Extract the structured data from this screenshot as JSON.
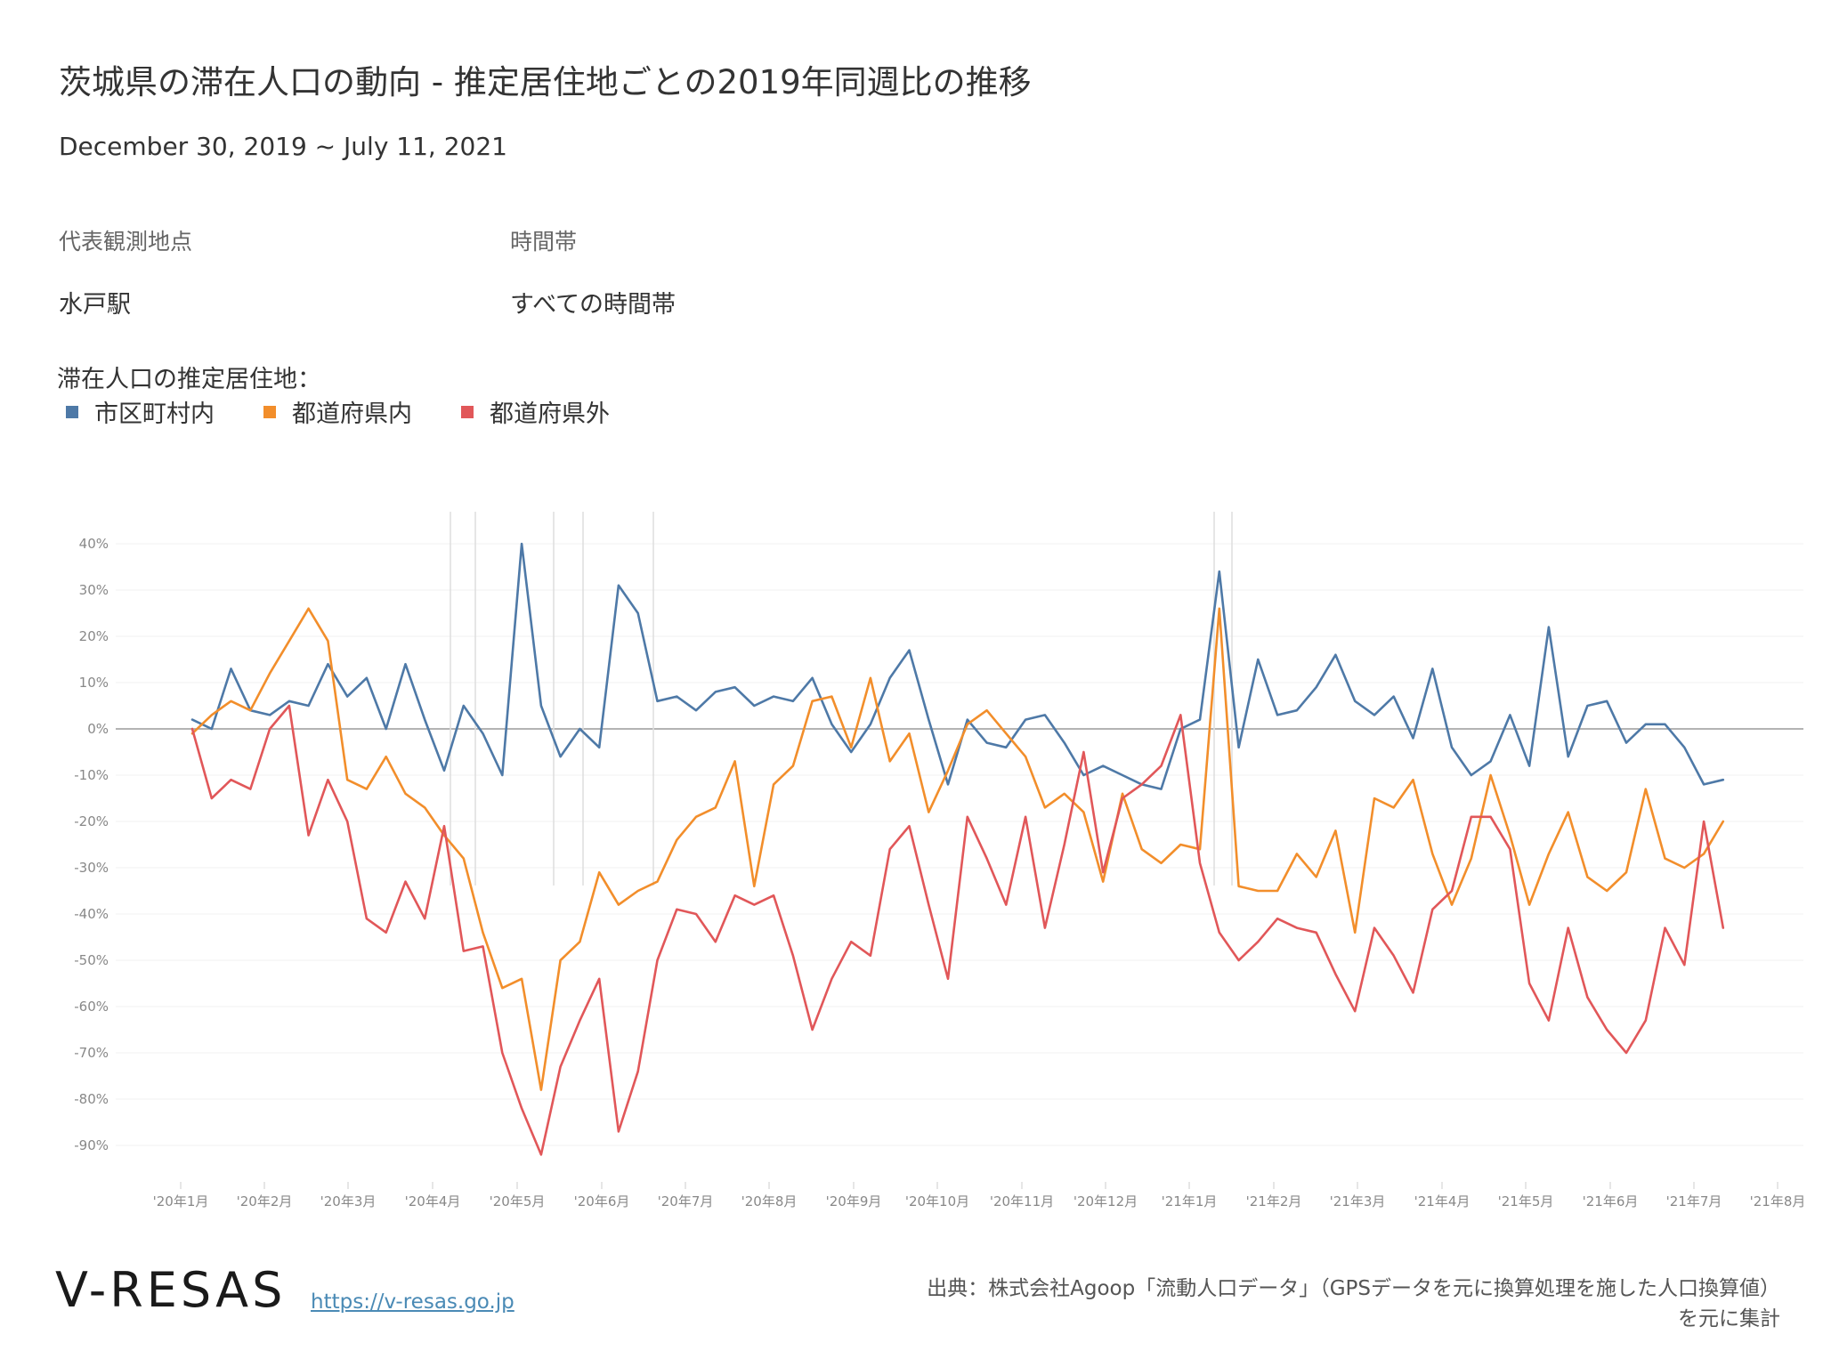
{
  "title": "茨城県の滞在人口の動向 - 推定居住地ごとの2019年同週比の推移",
  "subtitle": "December 30, 2019 ~ July 11, 2021",
  "filters": [
    {
      "label": "代表観測地点",
      "value": "水戸駅"
    },
    {
      "label": "時間帯",
      "value": "すべての時間帯"
    }
  ],
  "legend": {
    "title": "滞在人口の推定居住地：",
    "items": [
      {
        "label": "市区町村内",
        "color": "#4e79a7"
      },
      {
        "label": "都道府県内",
        "color": "#f28e2b"
      },
      {
        "label": "都道府県外",
        "color": "#e15759"
      }
    ]
  },
  "chart_data": {
    "type": "line",
    "x_start": "2020-01-06",
    "x_interval": "weekly",
    "ylim": [
      -95,
      45
    ],
    "yticks": [
      40,
      30,
      20,
      10,
      0,
      -10,
      -20,
      -30,
      -40,
      -50,
      -60,
      -70,
      -80,
      -90
    ],
    "ytick_labels": [
      "40%",
      "30%",
      "20%",
      "10%",
      "0%",
      "-10%",
      "-20%",
      "-30%",
      "-40%",
      "-50%",
      "-60%",
      "-70%",
      "-80%",
      "-90%"
    ],
    "xtick_labels": [
      "'20年1月",
      "'20年2月",
      "'20年3月",
      "'20年4月",
      "'20年5月",
      "'20年6月",
      "'20年7月",
      "'20年8月",
      "'20年9月",
      "'20年10月",
      "'20年11月",
      "'20年12月",
      "'21年1月",
      "'21年2月",
      "'21年3月",
      "'21年4月",
      "'21年5月",
      "'21年6月",
      "'21年7月",
      "'21年8月"
    ],
    "grid": true,
    "zero_line": true,
    "series": [
      {
        "name": "市区町村内",
        "color": "#4e79a7",
        "values": [
          2,
          0,
          13,
          4,
          3,
          6,
          5,
          14,
          7,
          11,
          0,
          14,
          2,
          -9,
          5,
          -1,
          -10,
          40,
          5,
          -6,
          0,
          -4,
          31,
          25,
          6,
          7,
          4,
          8,
          9,
          5,
          7,
          6,
          11,
          1,
          -5,
          1,
          11,
          17,
          2,
          -12,
          2,
          -3,
          -4,
          2,
          3,
          -3,
          -10,
          -8,
          -10,
          -12,
          -13,
          0,
          2,
          34,
          -4,
          15,
          3,
          4,
          9,
          16,
          6,
          3,
          7,
          -2,
          13,
          -4,
          -10,
          -7,
          3,
          -8,
          22,
          -6,
          5,
          6,
          -3,
          1,
          1,
          -4,
          -12,
          -11
        ]
      },
      {
        "name": "都道府県内",
        "color": "#f28e2b",
        "values": [
          -1,
          3,
          6,
          4,
          12,
          19,
          26,
          19,
          -11,
          -13,
          -6,
          -14,
          -17,
          -23,
          -28,
          -44,
          -56,
          -54,
          -78,
          -50,
          -46,
          -31,
          -38,
          -35,
          -33,
          -24,
          -19,
          -17,
          -7,
          -34,
          -12,
          -8,
          6,
          7,
          -4,
          11,
          -7,
          -1,
          -18,
          -9,
          1,
          4,
          -1,
          -6,
          -17,
          -14,
          -18,
          -33,
          -14,
          -26,
          -29,
          -25,
          -26,
          26,
          -34,
          -35,
          -35,
          -27,
          -32,
          -22,
          -44,
          -15,
          -17,
          -11,
          -27,
          -38,
          -28,
          -10,
          -23,
          -38,
          -27,
          -18,
          -32,
          -35,
          -31,
          -13,
          -28,
          -30,
          -27,
          -20
        ]
      },
      {
        "name": "都道府県外",
        "color": "#e15759",
        "values": [
          0,
          -15,
          -11,
          -13,
          0,
          5,
          -23,
          -11,
          -20,
          -41,
          -44,
          -33,
          -41,
          -21,
          -48,
          -47,
          -70,
          -82,
          -92,
          -73,
          -63,
          -54,
          -87,
          -74,
          -50,
          -39,
          -40,
          -46,
          -36,
          -38,
          -36,
          -49,
          -65,
          -54,
          -46,
          -49,
          -26,
          -21,
          -38,
          -54,
          -19,
          -28,
          -38,
          -19,
          -43,
          -25,
          -5,
          -31,
          -15,
          -12,
          -8,
          3,
          -29,
          -44,
          -50,
          -46,
          -41,
          -43,
          -44,
          -53,
          -61,
          -43,
          -49,
          -57,
          -39,
          -35,
          -19,
          -19,
          -26,
          -55,
          -63,
          -43,
          -58,
          -65,
          -70,
          -63,
          -43,
          -51,
          -20,
          -43
        ]
      }
    ]
  },
  "footer": {
    "logo": "V-RESAS",
    "url": "https://v-resas.go.jp",
    "source_line1": "出典：株式会社Agoop「流動人口データ」（GPSデータを元に換算処理を施した人口換算値）",
    "source_line2": "を元に集計"
  }
}
